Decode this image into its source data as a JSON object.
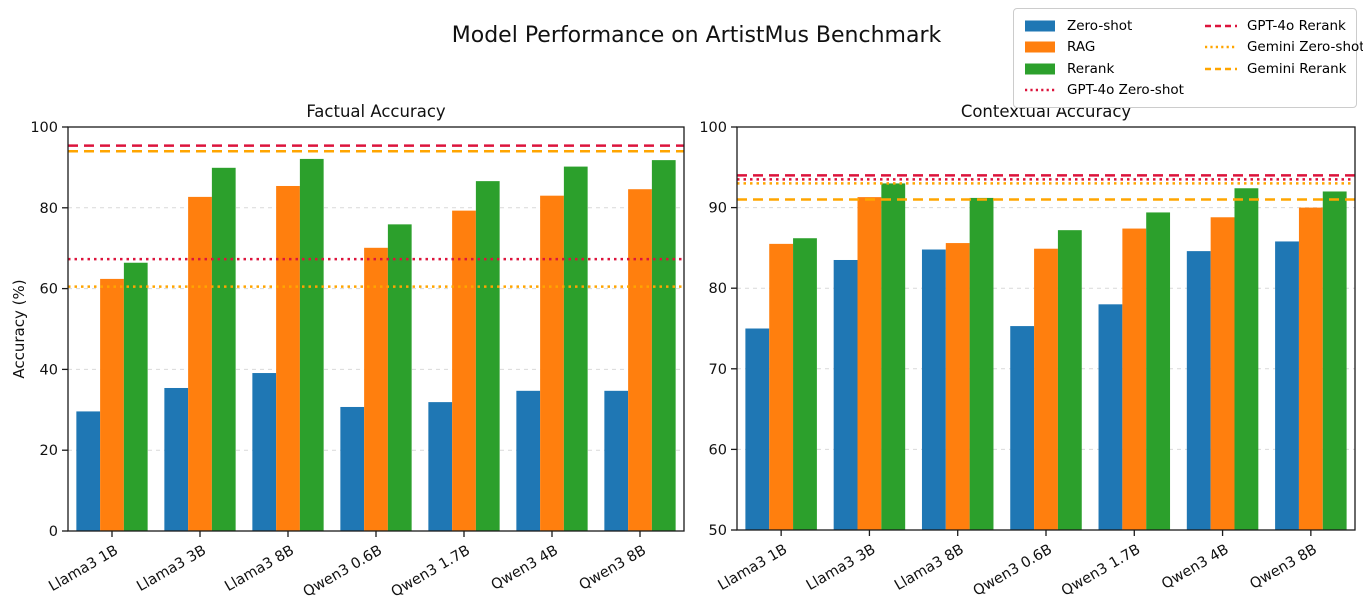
{
  "title": "Model Performance on ArtistMus Benchmark",
  "ylabel": "Accuracy (%)",
  "colors": {
    "zero_shot": "#1f77b4",
    "rag": "#ff7f0e",
    "rerank": "#2ca02c",
    "gpt4o_line": "#dc143c",
    "gemini_line": "#ffa500",
    "grid": "#d9d9d9",
    "spine": "#1a1a1a"
  },
  "legend": {
    "position": "top-right",
    "columns": 2,
    "items": [
      {
        "label": "Zero-shot",
        "type": "patch",
        "style": "solid",
        "color": "#1f77b4"
      },
      {
        "label": "RAG",
        "type": "patch",
        "style": "solid",
        "color": "#ff7f0e"
      },
      {
        "label": "Rerank",
        "type": "patch",
        "style": "solid",
        "color": "#2ca02c"
      },
      {
        "label": "GPT-4o Zero-shot",
        "type": "line",
        "style": "dotted",
        "color": "#dc143c"
      },
      {
        "label": "GPT-4o Rerank",
        "type": "line",
        "style": "dashed",
        "color": "#dc143c"
      },
      {
        "label": "Gemini Zero-shot",
        "type": "line",
        "style": "dotted",
        "color": "#ffa500"
      },
      {
        "label": "Gemini Rerank",
        "type": "line",
        "style": "dashed",
        "color": "#ffa500"
      }
    ]
  },
  "chart_data": [
    {
      "type": "bar",
      "title": "Factual Accuracy",
      "xlabel": "",
      "ylabel": "Accuracy (%)",
      "ylim": [
        0,
        100
      ],
      "yticks": [
        0,
        20,
        40,
        60,
        80,
        100
      ],
      "grid": true,
      "categories": [
        "Llama3 1B",
        "Llama3 3B",
        "Llama3 8B",
        "Qwen3 0.6B",
        "Qwen3 1.7B",
        "Qwen3 4B",
        "Qwen3 8B"
      ],
      "series": [
        {
          "name": "Zero-shot",
          "color": "#1f77b4",
          "values": [
            29.6,
            35.4,
            39.1,
            30.7,
            31.9,
            34.7,
            34.7
          ]
        },
        {
          "name": "RAG",
          "color": "#ff7f0e",
          "values": [
            62.4,
            82.7,
            85.4,
            70.1,
            79.3,
            83.0,
            84.6
          ]
        },
        {
          "name": "Rerank",
          "color": "#2ca02c",
          "values": [
            66.4,
            89.9,
            92.1,
            75.9,
            86.6,
            90.2,
            91.8
          ]
        }
      ],
      "hlines": [
        {
          "name": "GPT-4o Zero-shot",
          "value": 67.3,
          "color": "#dc143c",
          "style": "dotted"
        },
        {
          "name": "GPT-4o Rerank",
          "value": 95.4,
          "color": "#dc143c",
          "style": "dashed"
        },
        {
          "name": "Gemini Zero-shot",
          "value": 60.5,
          "color": "#ffa500",
          "style": "dotted"
        },
        {
          "name": "Gemini Rerank",
          "value": 94.0,
          "color": "#ffa500",
          "style": "dashed"
        }
      ]
    },
    {
      "type": "bar",
      "title": "Contextual Accuracy",
      "xlabel": "",
      "ylabel": "",
      "ylim": [
        50,
        100
      ],
      "yticks": [
        50,
        60,
        70,
        80,
        90,
        100
      ],
      "grid": true,
      "categories": [
        "Llama3 1B",
        "Llama3 3B",
        "Llama3 8B",
        "Qwen3 0.6B",
        "Qwen3 1.7B",
        "Qwen3 4B",
        "Qwen3 8B"
      ],
      "series": [
        {
          "name": "Zero-shot",
          "color": "#1f77b4",
          "values": [
            75.0,
            83.5,
            84.8,
            75.3,
            78.0,
            84.6,
            85.8
          ]
        },
        {
          "name": "RAG",
          "color": "#ff7f0e",
          "values": [
            85.5,
            91.3,
            85.6,
            84.9,
            87.4,
            88.8,
            90.0
          ]
        },
        {
          "name": "Rerank",
          "color": "#2ca02c",
          "values": [
            86.2,
            93.0,
            91.2,
            87.2,
            89.4,
            92.4,
            92.0
          ]
        }
      ],
      "hlines": [
        {
          "name": "GPT-4o Zero-shot",
          "value": 93.5,
          "color": "#dc143c",
          "style": "dotted"
        },
        {
          "name": "GPT-4o Rerank",
          "value": 94.0,
          "color": "#dc143c",
          "style": "dashed"
        },
        {
          "name": "Gemini Zero-shot",
          "value": 93.0,
          "color": "#ffa500",
          "style": "dotted"
        },
        {
          "name": "Gemini Rerank",
          "value": 91.0,
          "color": "#ffa500",
          "style": "dashed"
        }
      ]
    }
  ]
}
